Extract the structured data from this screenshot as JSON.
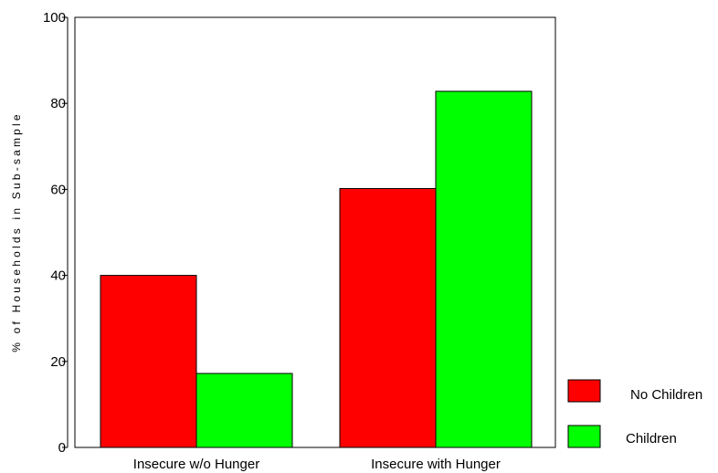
{
  "chart_data": {
    "type": "bar",
    "title": "",
    "xlabel": "",
    "ylabel": "% of Households in Sub-sample",
    "ylim": [
      0,
      100
    ],
    "yticks": [
      0,
      20,
      40,
      60,
      80,
      100
    ],
    "categories": [
      "Insecure w/o Hunger",
      "Insecure with Hunger"
    ],
    "series": [
      {
        "name": "No Children",
        "color": "#ff0000",
        "values": [
          40,
          60.2
        ]
      },
      {
        "name": "Children",
        "color": "#00ff00",
        "values": [
          17.2,
          82.8
        ]
      }
    ],
    "grid": false,
    "legend_position": "bottom-right"
  }
}
